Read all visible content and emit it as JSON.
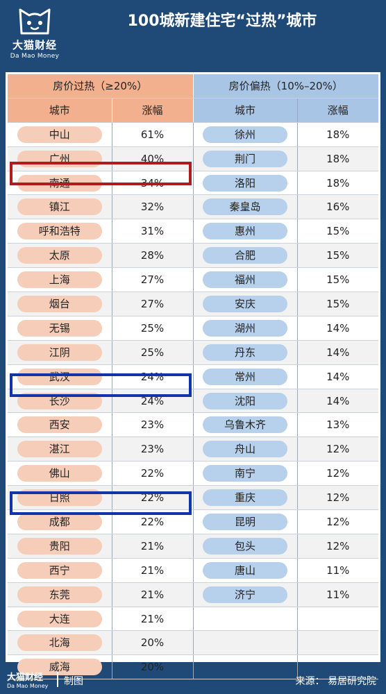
{
  "header": {
    "logo_cn": "大猫财经",
    "logo_en": "Da Mao Money",
    "title": "100城新建住宅“过热”城市"
  },
  "table": {
    "group_left": "房价过热（≥20%）",
    "group_right": "房价偏热（10%–20%）",
    "col_city": "城市",
    "col_rise": "涨幅",
    "rows": [
      {
        "lc": "中山",
        "lv": "61%",
        "rc": "徐州",
        "rv": "18%"
      },
      {
        "lc": "广州",
        "lv": "40%",
        "rc": "荆门",
        "rv": "18%"
      },
      {
        "lc": "南通",
        "lv": "34%",
        "rc": "洛阳",
        "rv": "18%"
      },
      {
        "lc": "镇江",
        "lv": "32%",
        "rc": "秦皇岛",
        "rv": "16%"
      },
      {
        "lc": "呼和浩特",
        "lv": "31%",
        "rc": "惠州",
        "rv": "15%"
      },
      {
        "lc": "太原",
        "lv": "28%",
        "rc": "合肥",
        "rv": "15%"
      },
      {
        "lc": "上海",
        "lv": "27%",
        "rc": "福州",
        "rv": "15%"
      },
      {
        "lc": "烟台",
        "lv": "27%",
        "rc": "安庆",
        "rv": "15%"
      },
      {
        "lc": "无锡",
        "lv": "25%",
        "rc": "湖州",
        "rv": "14%"
      },
      {
        "lc": "江阴",
        "lv": "25%",
        "rc": "丹东",
        "rv": "14%"
      },
      {
        "lc": "武汉",
        "lv": "24%",
        "rc": "常州",
        "rv": "14%"
      },
      {
        "lc": "长沙",
        "lv": "24%",
        "rc": "沈阳",
        "rv": "14%"
      },
      {
        "lc": "西安",
        "lv": "23%",
        "rc": "乌鲁木齐",
        "rv": "13%"
      },
      {
        "lc": "湛江",
        "lv": "23%",
        "rc": "舟山",
        "rv": "12%"
      },
      {
        "lc": "佛山",
        "lv": "22%",
        "rc": "南宁",
        "rv": "12%"
      },
      {
        "lc": "日照",
        "lv": "22%",
        "rc": "重庆",
        "rv": "12%"
      },
      {
        "lc": "成都",
        "lv": "22%",
        "rc": "昆明",
        "rv": "12%"
      },
      {
        "lc": "贵阳",
        "lv": "21%",
        "rc": "包头",
        "rv": "12%"
      },
      {
        "lc": "西宁",
        "lv": "21%",
        "rc": "唐山",
        "rv": "11%"
      },
      {
        "lc": "东莞",
        "lv": "21%",
        "rc": "济宁",
        "rv": "11%"
      },
      {
        "lc": "大连",
        "lv": "21%",
        "rc": "",
        "rv": ""
      },
      {
        "lc": "北海",
        "lv": "20%",
        "rc": "",
        "rv": ""
      },
      {
        "lc": "威海",
        "lv": "20%",
        "rc": "",
        "rv": ""
      }
    ]
  },
  "footer": {
    "logo_cn": "大猫财经",
    "logo_en": "Da Mao Money",
    "made": "制图",
    "source": "来源：  易居研究院"
  }
}
